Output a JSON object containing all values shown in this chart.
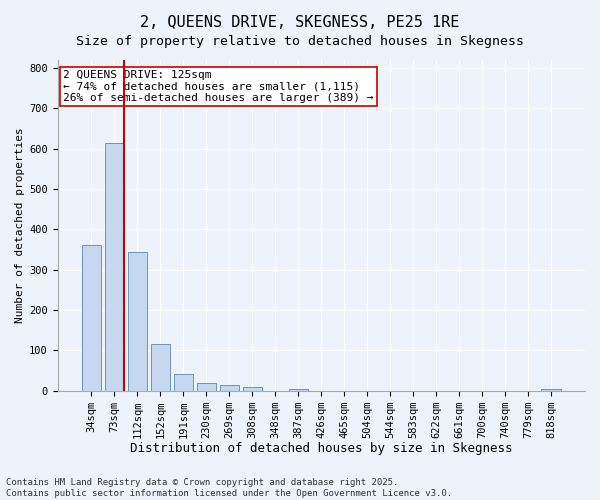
{
  "title": "2, QUEENS DRIVE, SKEGNESS, PE25 1RE",
  "subtitle": "Size of property relative to detached houses in Skegness",
  "xlabel": "Distribution of detached houses by size in Skegness",
  "ylabel": "Number of detached properties",
  "categories": [
    "34sqm",
    "73sqm",
    "112sqm",
    "152sqm",
    "191sqm",
    "230sqm",
    "269sqm",
    "308sqm",
    "348sqm",
    "387sqm",
    "426sqm",
    "465sqm",
    "504sqm",
    "544sqm",
    "583sqm",
    "622sqm",
    "661sqm",
    "700sqm",
    "740sqm",
    "779sqm",
    "818sqm"
  ],
  "values": [
    360,
    615,
    345,
    115,
    40,
    20,
    15,
    8,
    0,
    5,
    0,
    0,
    0,
    0,
    0,
    0,
    0,
    0,
    0,
    0,
    5
  ],
  "bar_color": "#c5d8f0",
  "bar_edge_color": "#5588bb",
  "vline_x_index": 1,
  "vline_color": "#cc0000",
  "annotation_text": "2 QUEENS DRIVE: 125sqm\n← 74% of detached houses are smaller (1,115)\n26% of semi-detached houses are larger (389) →",
  "annotation_box_color": "#ffffff",
  "annotation_box_edge_color": "#cc0000",
  "ylim": [
    0,
    820
  ],
  "yticks": [
    0,
    100,
    200,
    300,
    400,
    500,
    600,
    700,
    800
  ],
  "background_color": "#eef2fa",
  "grid_color": "#ffffff",
  "footer_line1": "Contains HM Land Registry data © Crown copyright and database right 2025.",
  "footer_line2": "Contains public sector information licensed under the Open Government Licence v3.0.",
  "title_fontsize": 11,
  "subtitle_fontsize": 9.5,
  "xlabel_fontsize": 9,
  "ylabel_fontsize": 8,
  "tick_fontsize": 7.5,
  "annotation_fontsize": 8,
  "footer_fontsize": 6.5
}
